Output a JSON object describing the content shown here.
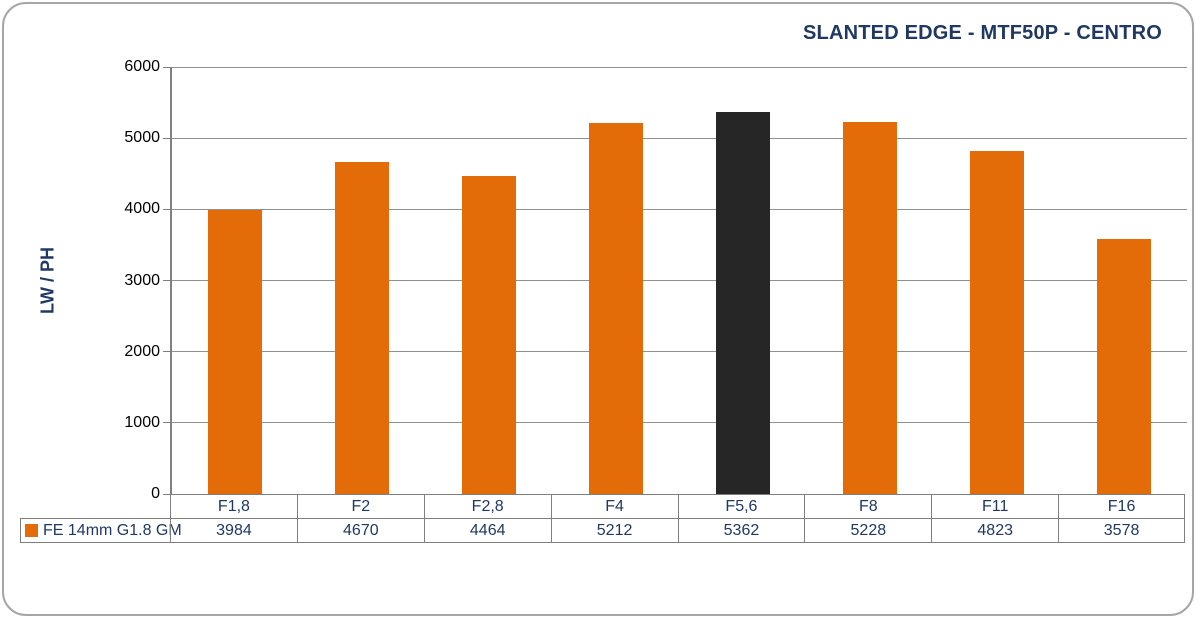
{
  "title": "SLANTED EDGE - MTF50P - CENTRO",
  "y_axis": {
    "label": "LW / PH",
    "tick_labels": [
      "0",
      "1000",
      "2000",
      "3000",
      "4000",
      "5000",
      "6000"
    ]
  },
  "legend": {
    "series_label": "FE 14mm G1.8 GM"
  },
  "colors": {
    "bar_orange": "#e36c09",
    "bar_highlight": "#262626",
    "title_text": "#1f3864",
    "table_text": "#1f3864",
    "tick_text": "#000000",
    "grid_line": "#909090",
    "axis_line": "#808080",
    "table_border": "#7f7f7f",
    "frame_border": "#a6a6a6",
    "background": "#ffffff"
  },
  "chart_data": {
    "type": "bar",
    "title": "SLANTED EDGE - MTF50P - CENTRO",
    "xlabel": "",
    "ylabel": "LW / PH",
    "ylim": [
      0,
      6000
    ],
    "ytick_step": 1000,
    "grid": true,
    "legend_position": "bottom-left-table",
    "categories": [
      "F1,8",
      "F2",
      "F2,8",
      "F4",
      "F5,6",
      "F8",
      "F11",
      "F16"
    ],
    "series": [
      {
        "name": "FE 14mm G1.8 GM",
        "values": [
          3984,
          4670,
          4464,
          5212,
          5362,
          5228,
          4823,
          3578
        ]
      }
    ],
    "highlight_index": 4,
    "bar_color": "#e36c09",
    "highlight_color": "#262626"
  }
}
